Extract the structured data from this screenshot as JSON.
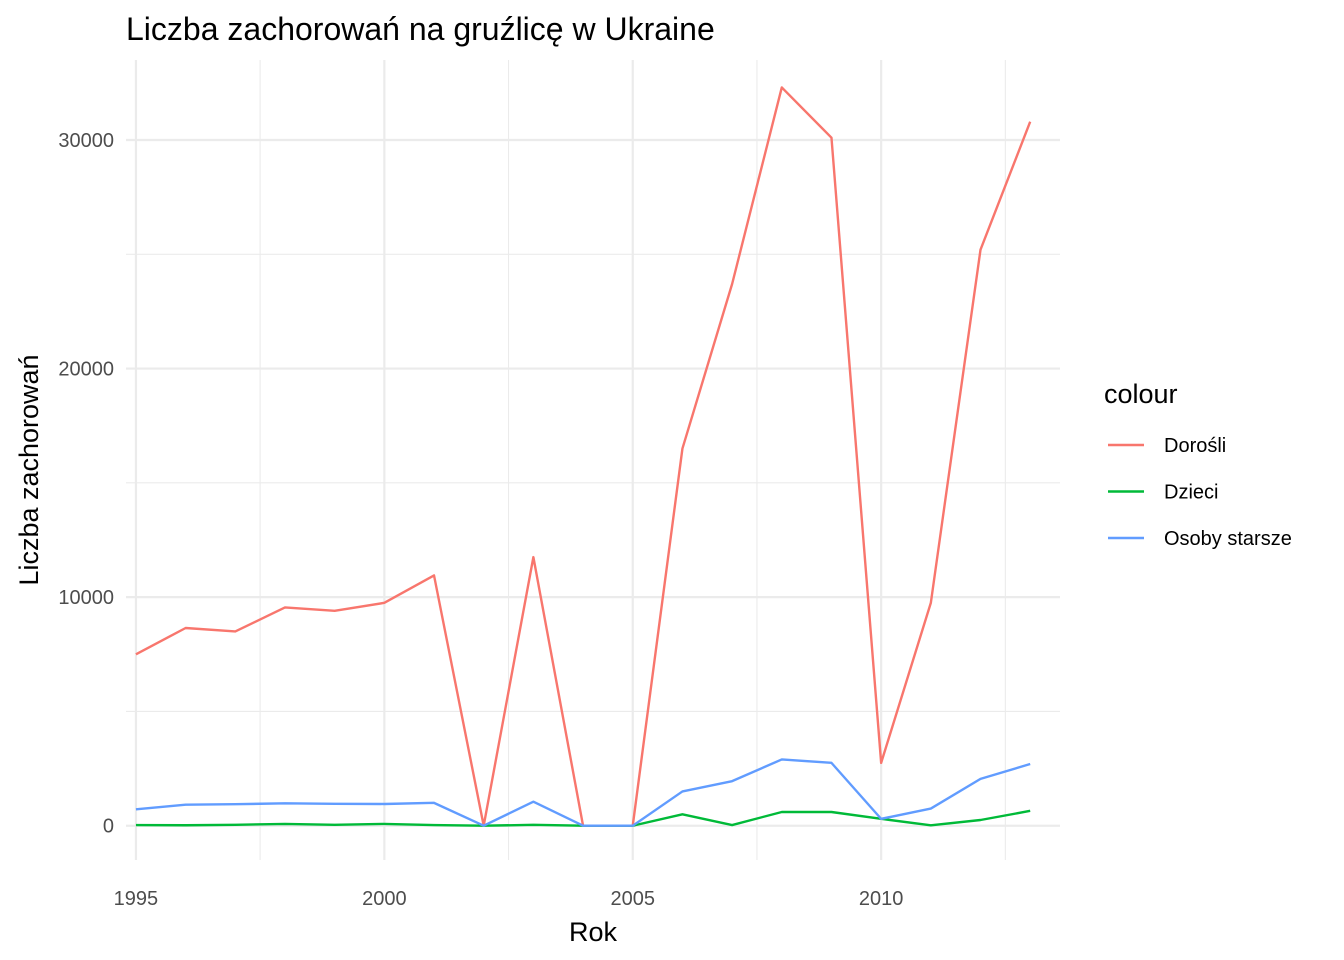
{
  "chart_data": {
    "type": "line",
    "title": "Liczba zachorowań na gruźlicę w Ukraine",
    "xlabel": "Rok",
    "ylabel": "Liczba zachorowań",
    "xlim": [
      1994.8,
      2013.6
    ],
    "ylim": [
      -1500,
      33500
    ],
    "x_ticks": [
      1995,
      2000,
      2005,
      2010
    ],
    "y_ticks": [
      0,
      10000,
      20000,
      30000
    ],
    "x": [
      1995,
      1996,
      1997,
      1998,
      1999,
      2000,
      2001,
      2002,
      2003,
      2004,
      2005,
      2006,
      2007,
      2008,
      2009,
      2010,
      2011,
      2012,
      2013
    ],
    "grid": true,
    "legend": {
      "title": "colour",
      "position": "right"
    },
    "series": [
      {
        "name": "Dorośli",
        "color": "#F8766D",
        "values": [
          7500,
          8650,
          8500,
          9550,
          9400,
          9750,
          10950,
          0,
          11750,
          0,
          0,
          16500,
          23700,
          32300,
          30100,
          2750,
          9750,
          25200,
          30800
        ]
      },
      {
        "name": "Dzieci",
        "color": "#00BA38",
        "values": [
          30,
          20,
          40,
          80,
          40,
          80,
          30,
          0,
          40,
          0,
          0,
          500,
          30,
          600,
          600,
          300,
          20,
          250,
          650
        ]
      },
      {
        "name": "Osoby starsze",
        "color": "#619CFF",
        "values": [
          720,
          920,
          940,
          980,
          960,
          950,
          1000,
          0,
          1050,
          0,
          0,
          1500,
          1950,
          2900,
          2750,
          300,
          750,
          2050,
          2700
        ]
      }
    ]
  }
}
